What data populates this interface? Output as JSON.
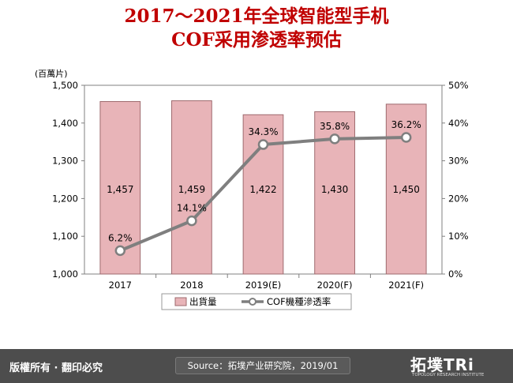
{
  "title_line1": "2017～2021年全球智能型手机",
  "title_line2": "COF采用渗透率预估",
  "chart_data": {
    "type": "bar+line",
    "categories": [
      "2017",
      "2018",
      "2019(E)",
      "2020(F)",
      "2021(F)"
    ],
    "series": [
      {
        "name": "出貨量",
        "type": "bar",
        "values": [
          1457,
          1459,
          1422,
          1430,
          1450
        ],
        "labels": [
          "1,457",
          "1,459",
          "1,422",
          "1,430",
          "1,450"
        ],
        "axis": "left"
      },
      {
        "name": "COF機種滲透率",
        "type": "line",
        "values": [
          6.2,
          14.1,
          34.3,
          35.8,
          36.2
        ],
        "labels": [
          "6.2%",
          "14.1%",
          "34.3%",
          "35.8%",
          "36.2%"
        ],
        "axis": "right"
      }
    ],
    "y_left": {
      "unit_label": "(百萬片)",
      "range": [
        1000,
        1500
      ],
      "ticks": [
        "1,000",
        "1,100",
        "1,200",
        "1,300",
        "1,400",
        "1,500"
      ]
    },
    "y_right": {
      "range": [
        0,
        50
      ],
      "ticks": [
        "0%",
        "10%",
        "20%",
        "30%",
        "40%",
        "50%"
      ]
    },
    "grid": false,
    "legend": "bottom",
    "colors": {
      "bar_fill": "#e8b4b8",
      "bar_stroke": "#9e6a6e",
      "line": "#7f7f7f",
      "title": "#c00000"
    }
  },
  "footer": {
    "left": "版權所有 · 翻印必究",
    "source": "Source：拓墣产业研究院，2019/01",
    "logo_main": "拓墣TRi",
    "logo_sub": "TOPOLOGY RESEARCH INSTITUTE"
  }
}
